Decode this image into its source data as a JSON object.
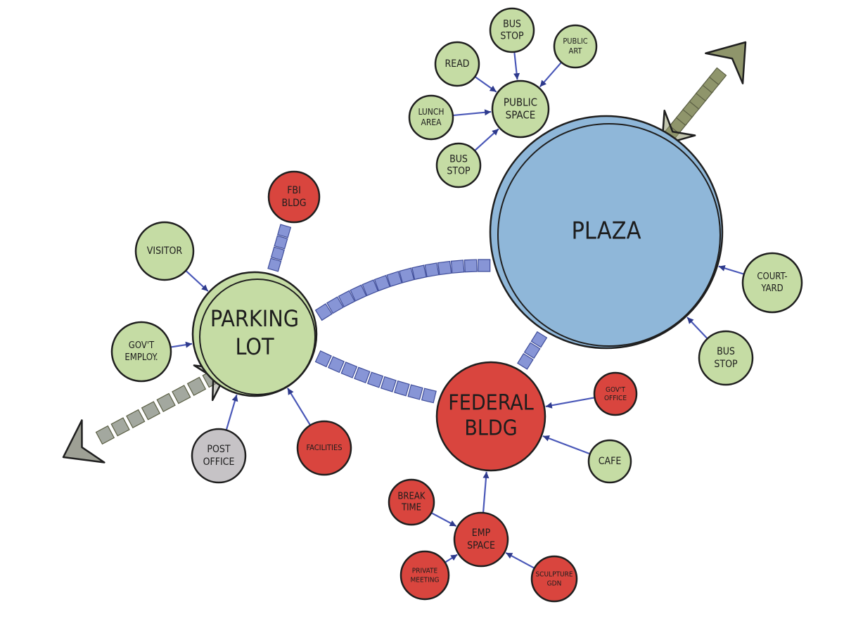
{
  "colors": {
    "green": "#c5dca4",
    "red": "#d9453e",
    "blue": "#8fb7d9",
    "grey": "#c6c3c6",
    "link": "#8795d6",
    "connector": "#4a58b8"
  },
  "nodes": {
    "plaza": {
      "lines": [
        "PLAZA"
      ],
      "color": "blue"
    },
    "parking_lot": {
      "lines": [
        "PARKING",
        "LOT"
      ],
      "color": "green"
    },
    "federal_bldg": {
      "lines": [
        "FEDERAL",
        "BLDG"
      ],
      "color": "red"
    },
    "public_space": {
      "lines": [
        "PUBLIC",
        "SPACE"
      ],
      "color": "green"
    },
    "bus_stop_top": {
      "lines": [
        "BUS",
        "STOP"
      ],
      "color": "green"
    },
    "public_art": {
      "lines": [
        "PUBLIC",
        "ART"
      ],
      "color": "green"
    },
    "read": {
      "lines": [
        "READ"
      ],
      "color": "green"
    },
    "lunch_area": {
      "lines": [
        "LUNCH",
        "AREA"
      ],
      "color": "green"
    },
    "bus_stop_left": {
      "lines": [
        "BUS",
        "STOP"
      ],
      "color": "green"
    },
    "fbi_bldg": {
      "lines": [
        "FBI",
        "BLDG"
      ],
      "color": "red"
    },
    "visitor": {
      "lines": [
        "VISITOR"
      ],
      "color": "green"
    },
    "govt_employ": {
      "lines": [
        "GOV'T",
        "EMPLOY."
      ],
      "color": "green"
    },
    "post_office": {
      "lines": [
        "POST",
        "OFFICE"
      ],
      "color": "grey"
    },
    "facilities": {
      "lines": [
        "FACILITIES"
      ],
      "color": "red"
    },
    "courtyard": {
      "lines": [
        "COURT-",
        "YARD"
      ],
      "color": "green"
    },
    "bus_stop_right": {
      "lines": [
        "BUS",
        "STOP"
      ],
      "color": "green"
    },
    "govt_office": {
      "lines": [
        "GOV'T",
        "OFFICE"
      ],
      "color": "red"
    },
    "cafe": {
      "lines": [
        "CAFE"
      ],
      "color": "green"
    },
    "emp_space": {
      "lines": [
        "EMP",
        "SPACE"
      ],
      "color": "red"
    },
    "break_time": {
      "lines": [
        "BREAK",
        "TIME"
      ],
      "color": "red"
    },
    "private_meeting": {
      "lines": [
        "PRIVATE",
        "MEETING"
      ],
      "color": "red"
    },
    "sculpture_gdn": {
      "lines": [
        "SCULPTURE",
        "GDN"
      ],
      "color": "red"
    }
  }
}
